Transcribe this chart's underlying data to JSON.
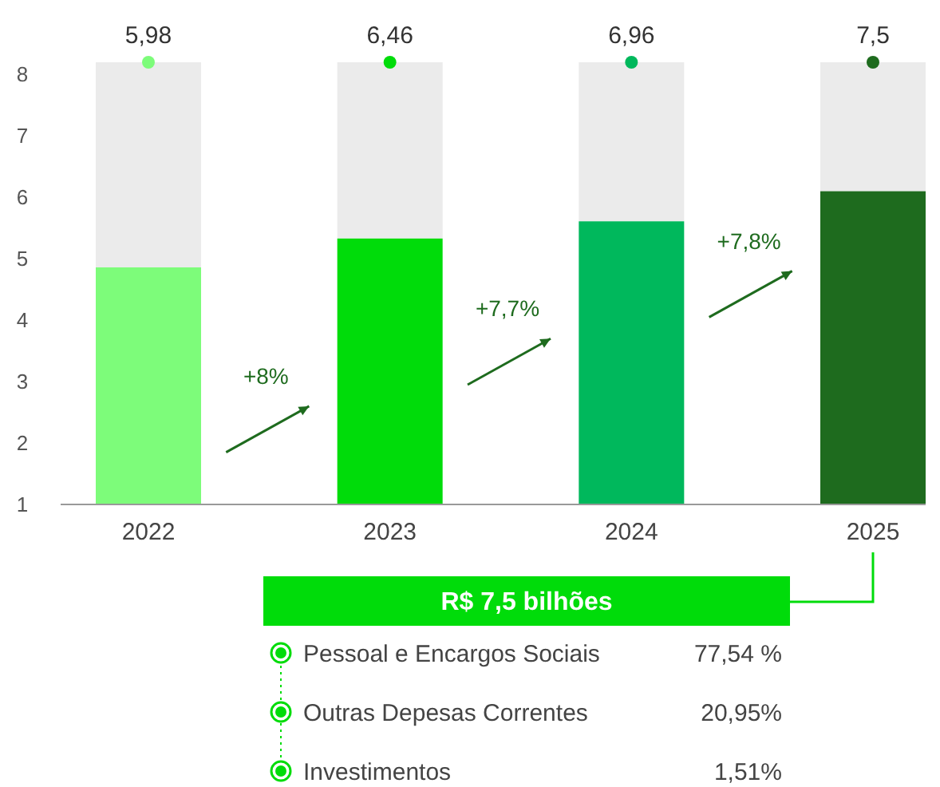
{
  "chart_data": [
    {
      "type": "bar",
      "categories": [
        "2022",
        "2023",
        "2024",
        "2025"
      ],
      "series": [
        {
          "colors": [
            "#7dfc7a",
            "#00dc0a",
            "#00b85c",
            "#1e6b1e"
          ],
          "values": [
            4.86,
            5.33,
            5.61,
            6.1
          ]
        }
      ],
      "ylim": [
        1,
        8.2
      ],
      "yticks": [
        1,
        2,
        3,
        4,
        5,
        6,
        7,
        8
      ],
      "annotations": [
        {
          "text": "5,98",
          "x": "2022",
          "y": 8.2
        },
        {
          "text": "6,46",
          "x": "2023",
          "y": 8.2
        },
        {
          "text": "6,96",
          "x": "2024",
          "y": 8.2
        },
        {
          "text": "7,5",
          "x": "2025",
          "y": 8.2
        },
        "+8%",
        "+7,7%",
        "+7,8%"
      ]
    },
    {
      "type": "other",
      "title": "R$ 7,5 bilhões",
      "categories": [
        "Pessoal e Encargos Sociais",
        "Outras Depesas Correntes",
        "Investimentos"
      ],
      "values": [
        77.54,
        20.95,
        1.51
      ],
      "value_labels": [
        "77,54 %",
        "20,95%",
        "1,51%"
      ],
      "color": "#00dc0a"
    }
  ]
}
